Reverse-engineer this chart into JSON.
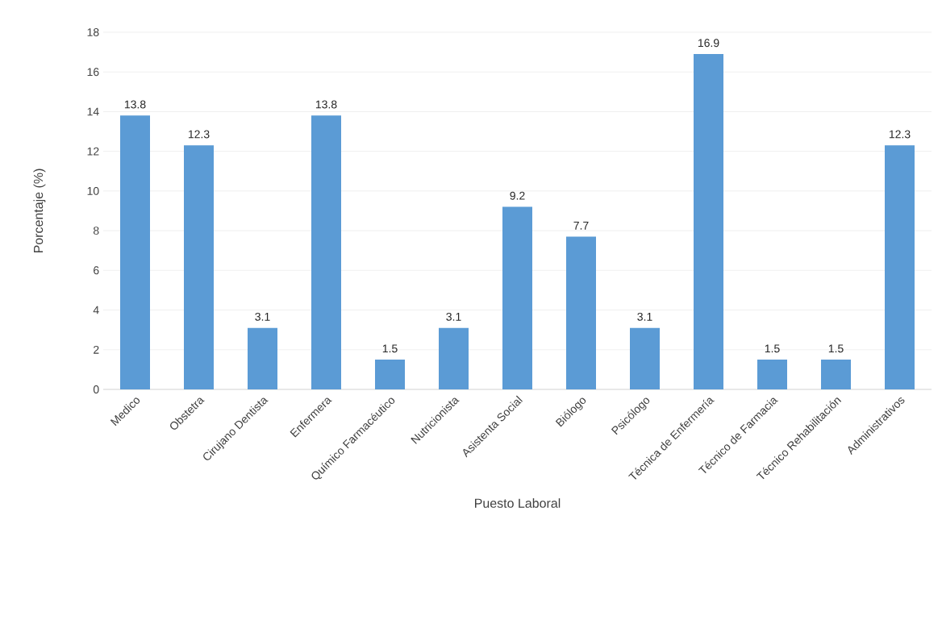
{
  "chart_data": {
    "type": "bar",
    "xlabel": "Puesto Laboral",
    "ylabel": "Porcentaje (%)",
    "categories": [
      "Medico",
      "Obstetra",
      "Cirujano Dentista",
      "Enfermera",
      "Químico Farmacéutico",
      "Nutricionista",
      "Asistenta Social",
      "Biólogo",
      "Psicólogo",
      "Técnica de Enfermería",
      "Técnico de Farmacia",
      "Técnico Rehabilitación",
      "Administrativos"
    ],
    "values": [
      13.8,
      12.3,
      3.1,
      13.8,
      1.5,
      3.1,
      9.2,
      7.7,
      3.1,
      16.9,
      1.5,
      1.5,
      12.3
    ],
    "color": "#5b9bd5",
    "ylim": [
      0,
      18
    ],
    "yticks": [
      0,
      2,
      4,
      6,
      8,
      10,
      12,
      14,
      16,
      18
    ],
    "grid": "y",
    "data_labels": true
  }
}
